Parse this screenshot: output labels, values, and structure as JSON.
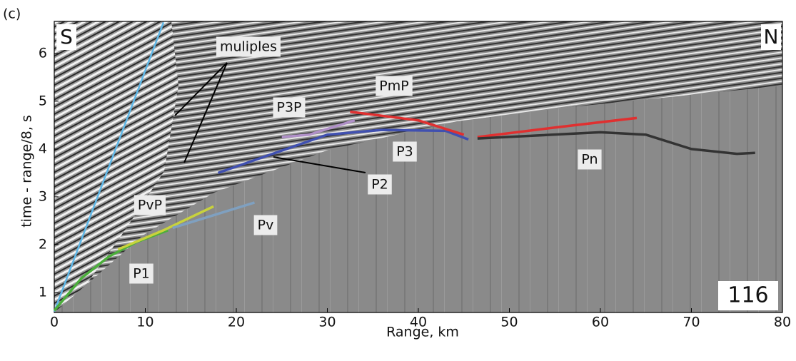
{
  "chart_data": {
    "type": "line",
    "panel_label": "(c)",
    "xlabel": "Range, km",
    "ylabel": "time - range/8, s",
    "corner_labels": [
      "S",
      "N"
    ],
    "record": "116",
    "annotations": [
      "muliples",
      "P3P",
      "PmP",
      "P3",
      "P2",
      "Pn",
      "PvP",
      "Pv",
      "P1"
    ],
    "xlim": [
      0,
      80
    ],
    "ylim": [
      0.58,
      6.67
    ],
    "xticks": [
      0,
      10,
      20,
      30,
      40,
      50,
      60,
      70,
      80
    ],
    "yticks": [
      1,
      2,
      3,
      4,
      5,
      6
    ],
    "series": [
      {
        "color": "#5fb8e8",
        "x": [
          0,
          12
        ],
        "values": [
          0.6,
          6.65
        ]
      },
      {
        "color": "#4cae3c",
        "x": [
          0,
          3,
          6,
          9,
          12.5
        ],
        "values": [
          0.62,
          1.3,
          1.75,
          2.05,
          2.3
        ]
      },
      {
        "color": "#c8d23c",
        "x": [
          7,
          12,
          17.5
        ],
        "values": [
          1.9,
          2.3,
          2.8
        ]
      },
      {
        "color": "#7fa0c0",
        "x": [
          13,
          22
        ],
        "values": [
          2.35,
          2.88
        ]
      },
      {
        "color": "#4050b0",
        "x": [
          18,
          24,
          30,
          36,
          43,
          45.5
        ],
        "values": [
          3.5,
          3.9,
          4.3,
          4.4,
          4.38,
          4.2
        ]
      },
      {
        "color": "#b090c8",
        "x": [
          25,
          28,
          33
        ],
        "values": [
          4.25,
          4.3,
          4.6
        ]
      },
      {
        "color": "#e03030",
        "x": [
          32.5,
          40,
          45
        ],
        "values": [
          4.78,
          4.6,
          4.3
        ]
      },
      {
        "color": "#e03030",
        "x": [
          46.5,
          55,
          64
        ],
        "values": [
          4.25,
          4.45,
          4.65
        ]
      },
      {
        "color": "#333333",
        "x": [
          46.5,
          60,
          65,
          70,
          75,
          77
        ],
        "values": [
          4.22,
          4.35,
          4.3,
          4.0,
          3.9,
          3.92
        ]
      }
    ]
  }
}
